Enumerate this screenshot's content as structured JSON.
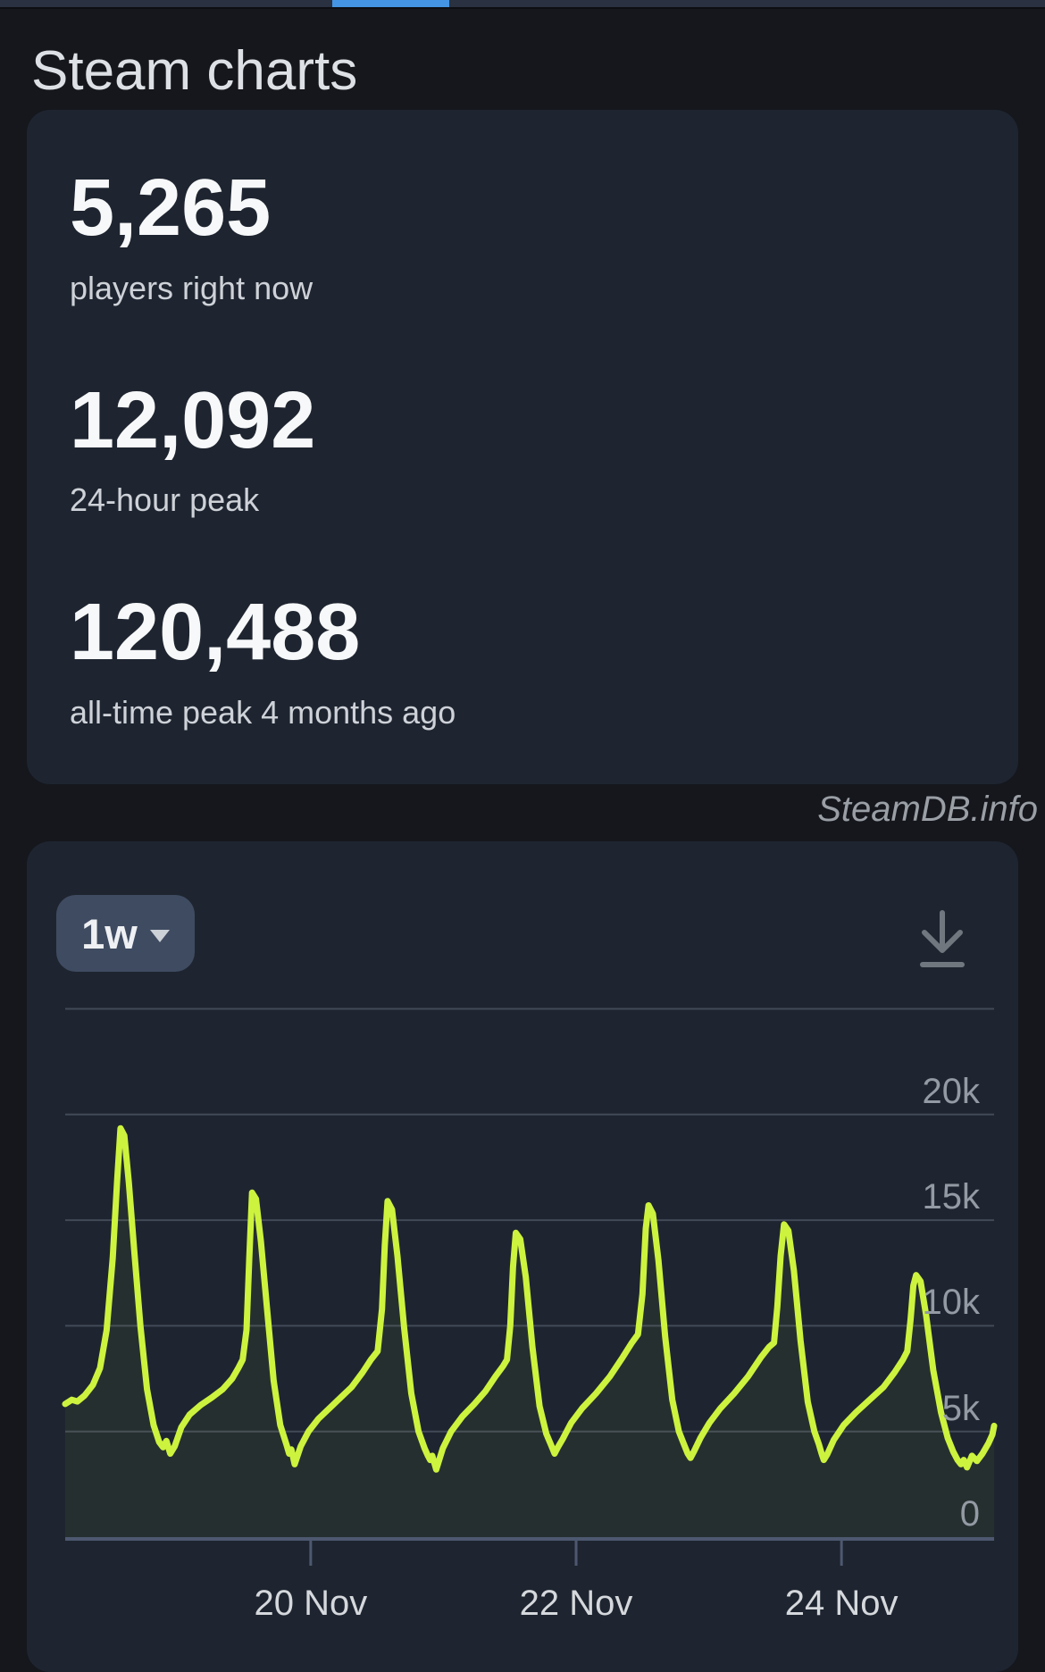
{
  "page": {
    "title": "Steam charts",
    "watermark": "SteamDB.info"
  },
  "top_bar": {
    "progress_color": "#4495e4"
  },
  "stats": [
    {
      "value": "5,265",
      "label": "players right now"
    },
    {
      "value": "12,092",
      "label": "24-hour peak"
    },
    {
      "value": "120,488",
      "label": "all-time peak 4 months ago"
    }
  ],
  "chart_controls": {
    "range_selected": "1w",
    "download_icon": "download-icon"
  },
  "chart_data": {
    "type": "line",
    "title": "Concurrent players, past week",
    "line_color": "#cdf33e",
    "fill_color": "rgba(205,243,62,0.05)",
    "grid_color": "#424957",
    "axis_color": "#4d5870",
    "xlim_hours": [
      0,
      168
    ],
    "ylim": [
      0,
      25500
    ],
    "grid_on": true,
    "y_gridlines": [
      25000,
      20000,
      15000,
      10000,
      5000,
      0
    ],
    "y_ticks": [
      {
        "label": "20k",
        "value": 20000
      },
      {
        "label": "15k",
        "value": 15000
      },
      {
        "label": "10k",
        "value": 10000
      },
      {
        "label": "5k",
        "value": 5000
      },
      {
        "label": "0",
        "value": 0
      }
    ],
    "x_ticks": [
      {
        "label": "20 Nov",
        "hour": 44.4
      },
      {
        "label": "22 Nov",
        "hour": 92.4
      },
      {
        "label": "24 Nov",
        "hour": 140.4
      }
    ],
    "series": [
      {
        "name": "players",
        "points_hours_players": [
          [
            0,
            6300
          ],
          [
            1.2,
            6500
          ],
          [
            2.2,
            6420
          ],
          [
            3.5,
            6700
          ],
          [
            5,
            7200
          ],
          [
            6.3,
            8000
          ],
          [
            7.5,
            9800
          ],
          [
            8.6,
            13200
          ],
          [
            9.4,
            16900
          ],
          [
            10,
            19350
          ],
          [
            10.7,
            19000
          ],
          [
            11.5,
            16800
          ],
          [
            12.5,
            13500
          ],
          [
            13.6,
            10000
          ],
          [
            14.8,
            7000
          ],
          [
            16,
            5300
          ],
          [
            17,
            4500
          ],
          [
            17.7,
            4250
          ],
          [
            18.3,
            4550
          ],
          [
            19,
            3950
          ],
          [
            19.8,
            4300
          ],
          [
            21,
            5200
          ],
          [
            22.5,
            5800
          ],
          [
            24.5,
            6250
          ],
          [
            26.5,
            6600
          ],
          [
            28.5,
            7000
          ],
          [
            30.2,
            7500
          ],
          [
            31.3,
            8000
          ],
          [
            32.1,
            8400
          ],
          [
            32.8,
            9800
          ],
          [
            33.3,
            13200
          ],
          [
            33.8,
            16300
          ],
          [
            34.5,
            16000
          ],
          [
            35.4,
            14000
          ],
          [
            36.5,
            10800
          ],
          [
            37.7,
            7400
          ],
          [
            38.9,
            5300
          ],
          [
            40,
            4400
          ],
          [
            40.5,
            3950
          ],
          [
            40.9,
            4150
          ],
          [
            41.5,
            3450
          ],
          [
            42.6,
            4300
          ],
          [
            44,
            5000
          ],
          [
            45.8,
            5600
          ],
          [
            47.8,
            6100
          ],
          [
            49.8,
            6600
          ],
          [
            51.8,
            7100
          ],
          [
            53.8,
            7800
          ],
          [
            55.3,
            8400
          ],
          [
            56.5,
            8800
          ],
          [
            57.3,
            10800
          ],
          [
            57.8,
            13800
          ],
          [
            58.3,
            15900
          ],
          [
            59.1,
            15500
          ],
          [
            60.1,
            13300
          ],
          [
            61.3,
            9900
          ],
          [
            62.6,
            6800
          ],
          [
            63.9,
            5000
          ],
          [
            65,
            4200
          ],
          [
            65.6,
            3850
          ],
          [
            66,
            3650
          ],
          [
            66.4,
            3850
          ],
          [
            67.1,
            3200
          ],
          [
            68.3,
            4200
          ],
          [
            69.8,
            5000
          ],
          [
            71.8,
            5700
          ],
          [
            74,
            6300
          ],
          [
            76,
            6900
          ],
          [
            77.8,
            7600
          ],
          [
            79.2,
            8100
          ],
          [
            79.9,
            8400
          ],
          [
            80.5,
            10000
          ],
          [
            81,
            12800
          ],
          [
            81.5,
            14400
          ],
          [
            82.3,
            14100
          ],
          [
            83.3,
            12300
          ],
          [
            84.5,
            9000
          ],
          [
            85.8,
            6200
          ],
          [
            87,
            4900
          ],
          [
            87.9,
            4350
          ],
          [
            88.5,
            3950
          ],
          [
            89.1,
            4250
          ],
          [
            90,
            4650
          ],
          [
            91.5,
            5400
          ],
          [
            93.5,
            6100
          ],
          [
            96,
            6800
          ],
          [
            98.5,
            7600
          ],
          [
            100.8,
            8500
          ],
          [
            102.5,
            9200
          ],
          [
            103.6,
            9600
          ],
          [
            104.4,
            11500
          ],
          [
            105,
            14600
          ],
          [
            105.5,
            15700
          ],
          [
            106.3,
            15300
          ],
          [
            107.3,
            13100
          ],
          [
            108.5,
            9500
          ],
          [
            109.8,
            6500
          ],
          [
            111,
            5000
          ],
          [
            111.9,
            4400
          ],
          [
            112.6,
            3950
          ],
          [
            113.1,
            3750
          ],
          [
            113.7,
            4050
          ],
          [
            114.9,
            4700
          ],
          [
            116.5,
            5400
          ],
          [
            118.5,
            6100
          ],
          [
            121,
            6800
          ],
          [
            123.5,
            7600
          ],
          [
            125.8,
            8500
          ],
          [
            127.3,
            9000
          ],
          [
            128.2,
            9200
          ],
          [
            128.8,
            10900
          ],
          [
            129.4,
            13300
          ],
          [
            130,
            14800
          ],
          [
            130.8,
            14500
          ],
          [
            131.8,
            12600
          ],
          [
            133,
            9300
          ],
          [
            134.3,
            6400
          ],
          [
            135.5,
            5000
          ],
          [
            136.3,
            4400
          ],
          [
            136.8,
            3950
          ],
          [
            137.2,
            3650
          ],
          [
            137.8,
            3900
          ],
          [
            139,
            4600
          ],
          [
            140.8,
            5300
          ],
          [
            143,
            5900
          ],
          [
            145.5,
            6500
          ],
          [
            148,
            7100
          ],
          [
            150,
            7800
          ],
          [
            151.5,
            8400
          ],
          [
            152.3,
            8800
          ],
          [
            152.9,
            10300
          ],
          [
            153.4,
            11900
          ],
          [
            153.9,
            12400
          ],
          [
            154.7,
            12100
          ],
          [
            155.7,
            10500
          ],
          [
            157,
            7900
          ],
          [
            158.4,
            5900
          ],
          [
            159.6,
            4700
          ],
          [
            160.6,
            4050
          ],
          [
            161.4,
            3650
          ],
          [
            162,
            3450
          ],
          [
            162.5,
            3650
          ],
          [
            163.1,
            3300
          ],
          [
            164,
            3850
          ],
          [
            164.9,
            3600
          ],
          [
            165.9,
            3950
          ],
          [
            167,
            4450
          ],
          [
            167.7,
            4850
          ],
          [
            168,
            5265
          ]
        ]
      }
    ]
  }
}
